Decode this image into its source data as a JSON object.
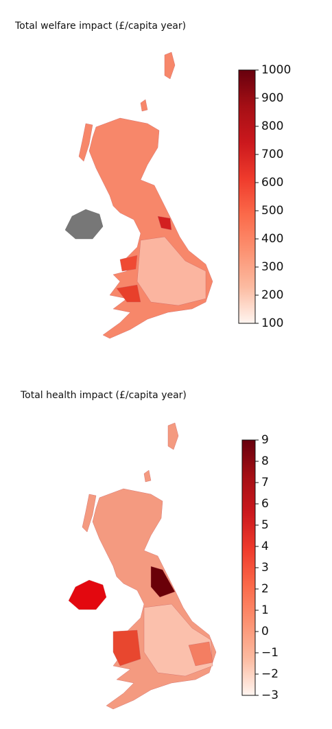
{
  "maps": [
    {
      "title": "Total welfare impact (£/capita year)",
      "colorbar": {
        "lim": [
          100,
          1000
        ],
        "ticks": [
          100,
          200,
          300,
          400,
          500,
          600,
          700,
          800,
          900,
          1000
        ],
        "colormap": [
          "#fff5f0",
          "#fcbba1",
          "#fc9272",
          "#fb6a4a",
          "#ef3b2c",
          "#cb181d",
          "#a50f15",
          "#67000d"
        ]
      }
    },
    {
      "title": "Total health impact (£/capita year)",
      "colorbar": {
        "lim": [
          -3,
          9
        ],
        "ticks": [
          {
            "value": -3,
            "label": "−3"
          },
          {
            "value": -2,
            "label": "−2"
          },
          {
            "value": -1,
            "label": "−1"
          },
          0,
          1,
          2,
          3,
          4,
          5,
          6,
          7,
          8,
          9
        ],
        "colormap": [
          "#fff5f0",
          "#fcbba1",
          "#fc9272",
          "#fb6a4a",
          "#ef3b2c",
          "#cb181d",
          "#a50f15",
          "#67000d"
        ]
      }
    }
  ]
}
